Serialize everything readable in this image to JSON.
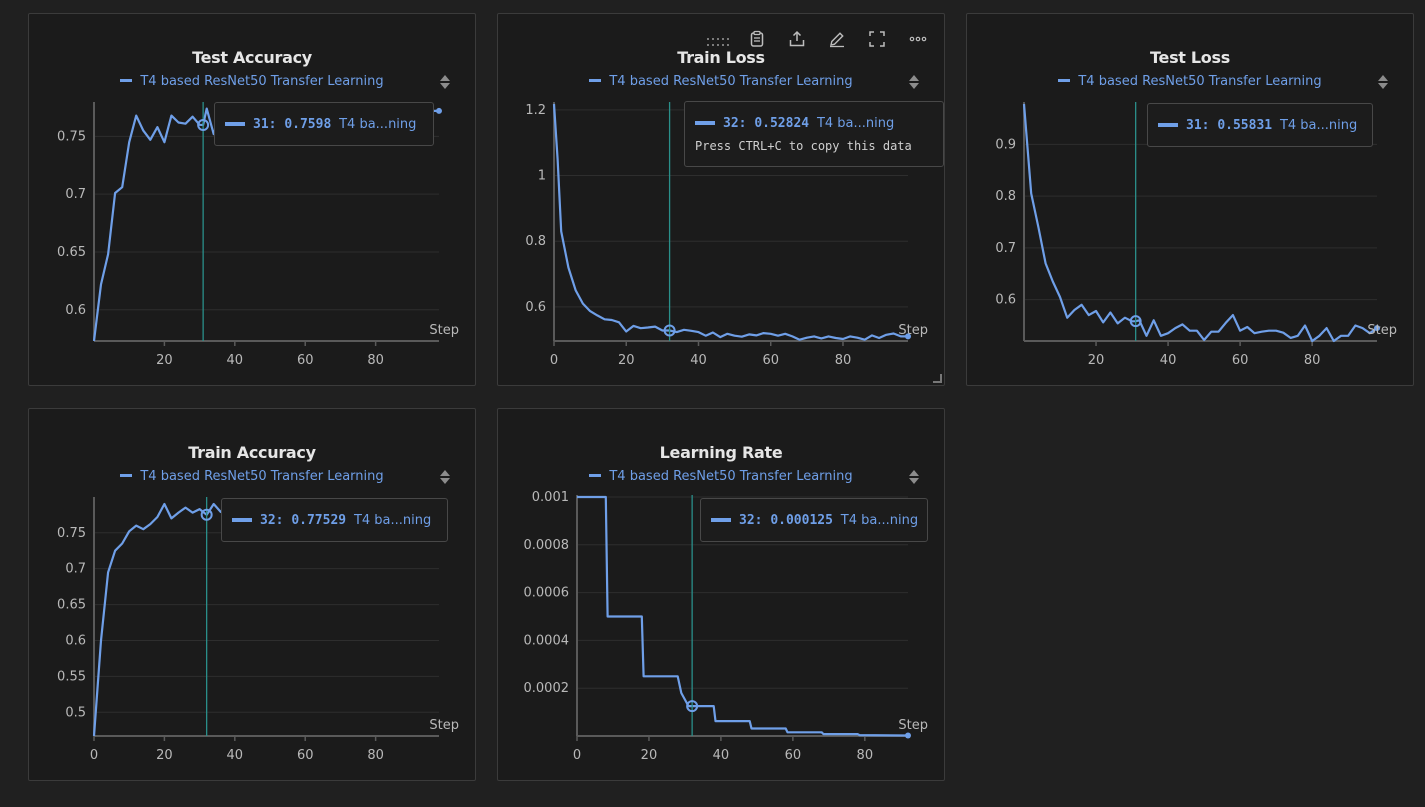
{
  "legend_label": "T4 based ResNet50 Transfer Learning",
  "series_short": "T4 ba...ning",
  "step_label": "Step",
  "copy_hint": "Press CTRL+C to copy this data",
  "colors": {
    "series": "#6f9fe8",
    "crosshair": "#2a8f8a",
    "background": "#1b1b1b",
    "grid": "#2e2e2e"
  },
  "icons": [
    "drag-handle-icon",
    "clipboard-icon",
    "share-icon",
    "edit-icon",
    "fullscreen-icon",
    "more-icon"
  ],
  "panels": [
    {
      "id": "test-accuracy",
      "title": "Test Accuracy",
      "tooltip": {
        "step": "31",
        "value": "0.7598"
      }
    },
    {
      "id": "train-loss",
      "title": "Train Loss",
      "tooltip": {
        "step": "32",
        "value": "0.52824"
      }
    },
    {
      "id": "test-loss",
      "title": "Test Loss",
      "tooltip": {
        "step": "31",
        "value": "0.55831"
      }
    },
    {
      "id": "train-accuracy",
      "title": "Train Accuracy",
      "tooltip": {
        "step": "32",
        "value": "0.77529"
      }
    },
    {
      "id": "learning-rate",
      "title": "Learning Rate",
      "tooltip": {
        "step": "32",
        "value": "0.000125"
      }
    }
  ],
  "chart_data": [
    {
      "type": "line",
      "title": "Test Accuracy",
      "xlabel": "Step",
      "xlim": [
        0,
        98
      ],
      "ylim": [
        0.573,
        0.778
      ],
      "xticks": [
        20,
        40,
        60,
        80
      ],
      "yticks": [
        0.6,
        0.65,
        0.7,
        0.75
      ],
      "ytick_labels": [
        "0.6",
        "0.65",
        "0.7",
        "0.75"
      ],
      "highlight_step": 31,
      "series": [
        {
          "x": [
            0,
            2,
            4,
            6,
            8,
            10,
            12,
            14,
            16,
            18,
            20,
            22,
            24,
            26,
            28,
            30,
            31,
            32,
            34,
            36,
            38,
            40,
            42,
            44,
            46,
            48,
            50,
            52,
            54,
            56,
            57,
            58,
            60,
            62,
            64,
            66,
            68,
            70,
            72,
            74,
            76,
            77,
            78,
            80,
            82,
            84,
            86,
            88,
            90,
            92,
            94,
            96,
            98
          ],
          "y": [
            0.573,
            0.622,
            0.648,
            0.701,
            0.706,
            0.745,
            0.768,
            0.755,
            0.747,
            0.758,
            0.745,
            0.768,
            0.762,
            0.761,
            0.767,
            0.76,
            0.7598,
            0.774,
            0.752,
            0.77,
            0.769,
            0.768,
            0.771,
            0.768,
            0.77,
            0.772,
            0.77,
            0.771,
            0.769,
            0.762,
            0.749,
            0.766,
            0.77,
            0.772,
            0.77,
            0.771,
            0.772,
            0.77,
            0.773,
            0.77,
            0.762,
            0.745,
            0.768,
            0.772,
            0.77,
            0.771,
            0.772,
            0.773,
            0.772,
            0.771,
            0.774,
            0.772,
            0.772
          ]
        }
      ]
    },
    {
      "type": "line",
      "title": "Train Loss",
      "xlabel": "Step",
      "xlim": [
        0,
        98
      ],
      "ylim": [
        0.496,
        1.218
      ],
      "xticks": [
        0,
        20,
        40,
        60,
        80
      ],
      "yticks": [
        0.6,
        0.8,
        1,
        1.2
      ],
      "ytick_labels": [
        "0.6",
        "0.8",
        "1",
        "1.2"
      ],
      "highlight_step": 32,
      "series": [
        {
          "x": [
            0,
            1,
            2,
            4,
            6,
            8,
            10,
            12,
            14,
            16,
            18,
            20,
            22,
            24,
            26,
            28,
            30,
            32,
            34,
            36,
            38,
            40,
            42,
            44,
            46,
            48,
            50,
            52,
            54,
            56,
            58,
            60,
            62,
            64,
            66,
            68,
            70,
            72,
            74,
            76,
            78,
            80,
            82,
            84,
            86,
            88,
            90,
            92,
            94,
            96,
            98
          ],
          "y": [
            1.218,
            1.05,
            0.83,
            0.72,
            0.65,
            0.61,
            0.587,
            0.574,
            0.562,
            0.56,
            0.553,
            0.525,
            0.542,
            0.535,
            0.537,
            0.54,
            0.528,
            0.528,
            0.523,
            0.53,
            0.527,
            0.523,
            0.512,
            0.522,
            0.508,
            0.518,
            0.512,
            0.509,
            0.516,
            0.513,
            0.52,
            0.518,
            0.512,
            0.518,
            0.51,
            0.5,
            0.506,
            0.51,
            0.504,
            0.51,
            0.505,
            0.502,
            0.51,
            0.506,
            0.5,
            0.513,
            0.505,
            0.515,
            0.519,
            0.51,
            0.51
          ]
        }
      ]
    },
    {
      "type": "line",
      "title": "Test Loss",
      "xlabel": "Step",
      "xlim": [
        0,
        98
      ],
      "ylim": [
        0.52,
        0.978
      ],
      "xticks": [
        20,
        40,
        60,
        80
      ],
      "yticks": [
        0.6,
        0.7,
        0.8,
        0.9
      ],
      "ytick_labels": [
        "0.6",
        "0.7",
        "0.8",
        "0.9"
      ],
      "highlight_step": 31,
      "series": [
        {
          "x": [
            0,
            2,
            4,
            6,
            8,
            10,
            12,
            14,
            16,
            18,
            20,
            22,
            24,
            26,
            28,
            30,
            31,
            32,
            34,
            36,
            38,
            40,
            42,
            44,
            46,
            48,
            50,
            52,
            54,
            56,
            58,
            60,
            62,
            64,
            66,
            68,
            70,
            72,
            74,
            76,
            78,
            80,
            82,
            84,
            86,
            88,
            90,
            92,
            94,
            96,
            98
          ],
          "y": [
            0.978,
            0.805,
            0.74,
            0.67,
            0.635,
            0.605,
            0.565,
            0.58,
            0.59,
            0.57,
            0.578,
            0.556,
            0.575,
            0.554,
            0.565,
            0.558,
            0.5583,
            0.56,
            0.53,
            0.56,
            0.53,
            0.535,
            0.545,
            0.552,
            0.54,
            0.54,
            0.522,
            0.538,
            0.538,
            0.555,
            0.57,
            0.54,
            0.547,
            0.535,
            0.538,
            0.54,
            0.54,
            0.536,
            0.526,
            0.53,
            0.55,
            0.52,
            0.53,
            0.545,
            0.52,
            0.53,
            0.53,
            0.55,
            0.545,
            0.535,
            0.545
          ]
        }
      ]
    },
    {
      "type": "line",
      "title": "Train Accuracy",
      "xlabel": "Step",
      "xlim": [
        0,
        98
      ],
      "ylim": [
        0.467,
        0.797
      ],
      "xticks": [
        0,
        20,
        40,
        60,
        80
      ],
      "yticks": [
        0.5,
        0.55,
        0.6,
        0.65,
        0.7,
        0.75
      ],
      "ytick_labels": [
        "0.5",
        "0.55",
        "0.6",
        "0.65",
        "0.7",
        "0.75"
      ],
      "highlight_step": 32,
      "series": [
        {
          "x": [
            0,
            2,
            4,
            6,
            8,
            10,
            12,
            14,
            16,
            18,
            20,
            22,
            24,
            26,
            28,
            30,
            32,
            34,
            36,
            38,
            40,
            42,
            44,
            46,
            48,
            50,
            52,
            54,
            56,
            58,
            60,
            62,
            64,
            66,
            68,
            70,
            72,
            74,
            76,
            78,
            80,
            82,
            84,
            86,
            88,
            90,
            92,
            94,
            96,
            98
          ],
          "y": [
            0.467,
            0.6,
            0.695,
            0.725,
            0.735,
            0.752,
            0.76,
            0.755,
            0.762,
            0.772,
            0.79,
            0.77,
            0.778,
            0.785,
            0.778,
            0.783,
            0.775,
            0.79,
            0.779,
            0.777,
            0.78,
            0.782,
            0.779,
            0.785,
            0.78,
            0.783,
            0.782,
            0.784,
            0.781,
            0.785,
            0.783,
            0.786,
            0.784,
            0.786,
            0.785,
            0.787,
            0.786,
            0.788,
            0.787,
            0.789,
            0.787,
            0.788,
            0.789,
            0.79,
            0.789,
            0.79,
            0.791,
            0.79,
            0.791,
            0.791
          ]
        }
      ]
    },
    {
      "type": "line",
      "title": "Learning Rate",
      "xlabel": "Step",
      "xlim": [
        0,
        92
      ],
      "ylim": [
        0,
        0.001
      ],
      "xticks": [
        0,
        20,
        40,
        60,
        80
      ],
      "yticks": [
        0.0002,
        0.0004,
        0.0006,
        0.0008,
        0.001
      ],
      "ytick_labels": [
        "0.0002",
        "0.0004",
        "0.0006",
        "0.0008",
        "0.001"
      ],
      "highlight_step": 32,
      "series": [
        {
          "x": [
            0,
            8,
            8.5,
            18,
            18.5,
            28,
            29,
            31,
            32,
            36,
            38,
            38.5,
            48,
            48.5,
            58,
            58.5,
            68,
            68.5,
            78,
            78.5,
            92
          ],
          "y": [
            0.001,
            0.001,
            0.0005,
            0.0005,
            0.00025,
            0.00025,
            0.00018,
            0.000125,
            0.000125,
            0.000125,
            0.000125,
            6.25e-05,
            6.25e-05,
            3.125e-05,
            3.125e-05,
            1.56e-05,
            1.56e-05,
            7.8e-06,
            7.8e-06,
            3.9e-06,
            2e-06
          ]
        }
      ]
    }
  ]
}
